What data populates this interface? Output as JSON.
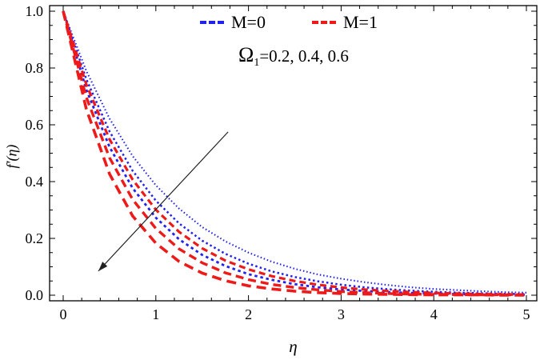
{
  "chart_data": {
    "type": "line",
    "title": "",
    "xlabel": "η",
    "ylabel": "f′(η)",
    "xlim": [
      0,
      5
    ],
    "ylim": [
      0,
      1
    ],
    "grid": false,
    "frame": true,
    "legend_position": "top-center-inside",
    "xticks": {
      "values": [
        0,
        1,
        2,
        3,
        4,
        5
      ],
      "labels": [
        "0",
        "1",
        "2",
        "3",
        "4",
        "5"
      ],
      "minor_step": 0.2
    },
    "yticks": {
      "values": [
        0,
        0.2,
        0.4,
        0.6,
        0.8,
        1.0
      ],
      "labels": [
        "0.0",
        "0.2",
        "0.4",
        "0.6",
        "0.8",
        "1.0"
      ],
      "minor_step": 0.05
    },
    "x": [
      0,
      0.25,
      0.5,
      0.75,
      1,
      1.25,
      1.5,
      1.75,
      2,
      2.25,
      2.5,
      2.75,
      3,
      3.25,
      3.5,
      3.75,
      4,
      4.25,
      4.5,
      4.75,
      5
    ],
    "series": [
      {
        "name": "M=0, Ω1=0.2",
        "color": "#2222ee",
        "dash": "1.5 2.8",
        "width": 2.1,
        "values": [
          1,
          0.789,
          0.622,
          0.49,
          0.387,
          0.305,
          0.24,
          0.19,
          0.15,
          0.118,
          0.093,
          0.073,
          0.058,
          0.046,
          0.036,
          0.028,
          0.022,
          0.018,
          0.014,
          0.011,
          0.009
        ]
      },
      {
        "name": "M=0, Ω1=0.4",
        "color": "#2222ee",
        "dash": "2.5 3.2",
        "width": 2.5,
        "values": [
          1,
          0.76,
          0.577,
          0.438,
          0.333,
          0.253,
          0.192,
          0.146,
          0.111,
          0.084,
          0.064,
          0.049,
          0.037,
          0.028,
          0.021,
          0.016,
          0.012,
          0.009,
          0.007,
          0.005,
          0.004
        ]
      },
      {
        "name": "M=0, Ω1=0.6",
        "color": "#2222ee",
        "dash": "3.5 3.8",
        "width": 2.8,
        "values": [
          1,
          0.723,
          0.522,
          0.377,
          0.273,
          0.197,
          0.142,
          0.103,
          0.074,
          0.054,
          0.039,
          0.028,
          0.02,
          0.015,
          0.011,
          0.008,
          0.006,
          0.004,
          0.003,
          0.002,
          0.002
        ]
      },
      {
        "name": "M=1, Ω1=0.2",
        "color": "#ee1a1a",
        "dash": "8 5",
        "width": 3.2,
        "values": [
          1,
          0.741,
          0.549,
          0.407,
          0.301,
          0.223,
          0.165,
          0.122,
          0.091,
          0.067,
          0.05,
          0.037,
          0.027,
          0.02,
          0.015,
          0.011,
          0.008,
          0.006,
          0.004,
          0.003,
          0.002
        ]
      },
      {
        "name": "M=1, Ω1=0.4",
        "color": "#ee1a1a",
        "dash": "10 6",
        "width": 3.4,
        "values": [
          1,
          0.696,
          0.484,
          0.337,
          0.235,
          0.163,
          0.114,
          0.079,
          0.055,
          0.038,
          0.027,
          0.019,
          0.013,
          0.009,
          0.006,
          0.004,
          0.003,
          0.002,
          0.001,
          0.001,
          0.001
        ]
      },
      {
        "name": "M=1, Ω1=0.6",
        "color": "#ee1a1a",
        "dash": "12 7",
        "width": 3.6,
        "values": [
          1,
          0.654,
          0.427,
          0.279,
          0.183,
          0.119,
          0.078,
          0.051,
          0.033,
          0.022,
          0.014,
          0.009,
          0.006,
          0.004,
          0.003,
          0.002,
          0.001,
          0.001,
          0.001,
          0.0,
          0.0
        ]
      }
    ],
    "legend": [
      {
        "label": "M=0",
        "color": "#2222ee"
      },
      {
        "label": "M=1",
        "color": "#ee1a1a"
      }
    ],
    "annotation": {
      "omega": "Ω",
      "sub": "1",
      "values": "=0.2, 0.4, 0.6"
    },
    "arrow": {
      "from": [
        1.78,
        0.575
      ],
      "to": [
        0.38,
        0.085
      ]
    },
    "colors": {
      "m0": "#2222ee",
      "m1": "#ee1a1a",
      "axes": "#000000",
      "arrow": "#222222"
    }
  }
}
